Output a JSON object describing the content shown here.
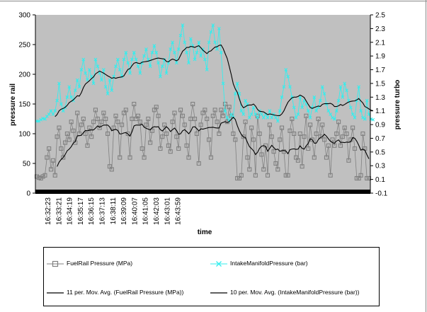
{
  "chart_data": {
    "type": "line",
    "xlabel": "time",
    "ylabel_left": "pressure rail",
    "ylabel_right": "pressure turbo",
    "y_left_range": [
      0,
      300
    ],
    "y_right_range": [
      -0.1,
      2.5
    ],
    "y_left_ticks": [
      "0",
      "50",
      "100",
      "150",
      "200",
      "250",
      "300"
    ],
    "y_right_ticks": [
      "-0.1",
      "0.1",
      "0.3",
      "0.5",
      "0.7",
      "0.9",
      "1.1",
      "1.3",
      "1.5",
      "1.7",
      "1.9",
      "2.1",
      "2.3",
      "2.5"
    ],
    "x_ticks": [
      "16:32:23",
      "16:33:21",
      "16:34:19",
      "16:35:17",
      "16:36:15",
      "16:37:13",
      "16:38:11",
      "16:39:09",
      "16:40:07",
      "16:41:05",
      "16:42:03",
      "16:43:01",
      "16:43:59"
    ],
    "grid": false,
    "background": "#c0c0c0",
    "legend_position": "bottom",
    "series": [
      {
        "name": "FuelRail Pressure (MPa)",
        "axis": "left",
        "color": "#808080",
        "marker": "square",
        "values": [
          28,
          26,
          25,
          28,
          30,
          60,
          75,
          40,
          55,
          30,
          95,
          110,
          75,
          60,
          85,
          100,
          90,
          120,
          105,
          85,
          135,
          100,
          115,
          125,
          100,
          80,
          110,
          95,
          120,
          140,
          125,
          110,
          120,
          135,
          125,
          100,
          45,
          40,
          110,
          130,
          120,
          60,
          115,
          135,
          140,
          100,
          60,
          125,
          150,
          125,
          130,
          120,
          75,
          60,
          115,
          125,
          85,
          105,
          140,
          145,
          130,
          75,
          95,
          115,
          100,
          80,
          70,
          120,
          135,
          95,
          75,
          140,
          130,
          115,
          80,
          60,
          125,
          150,
          125,
          100,
          50,
          115,
          135,
          140,
          125,
          90,
          60,
          130,
          140,
          120,
          100,
          140,
          130,
          150,
          120,
          145,
          130,
          100,
          90,
          25,
          25,
          30,
          95,
          120,
          60,
          40,
          110,
          90,
          30,
          130,
          100,
          65,
          40,
          80,
          30,
          115,
          95,
          70,
          50,
          40,
          90,
          110,
          70,
          30,
          30,
          105,
          125,
          100,
          60,
          55,
          100,
          45,
          95,
          130,
          75,
          115,
          90,
          60,
          100,
          125,
          95,
          115,
          90,
          60,
          80,
          30,
          90,
          80,
          100,
          120,
          80,
          95,
          110,
          100,
          55,
          90,
          110,
          75,
          25,
          25,
          30,
          100,
          75,
          25,
          25
        ]
      },
      {
        "name": "IntakeManifoldPressure (bar)",
        "axis": "right",
        "color": "#33eeee",
        "marker": "x",
        "values": [
          0.95,
          0.95,
          0.97,
          0.99,
          0.98,
          1.02,
          1.05,
          1.1,
          1.05,
          1.1,
          1.25,
          1.5,
          1.2,
          1.1,
          1.15,
          1.3,
          1.45,
          1.3,
          1.25,
          1.4,
          1.55,
          1.45,
          1.7,
          1.85,
          1.65,
          1.55,
          1.7,
          1.6,
          1.5,
          1.85,
          1.75,
          1.65,
          1.55,
          1.7,
          1.45,
          1.35,
          1.55,
          1.4,
          1.6,
          1.75,
          1.85,
          1.7,
          1.6,
          1.85,
          1.95,
          1.8,
          1.65,
          1.85,
          1.95,
          1.85,
          1.75,
          1.65,
          1.8,
          1.9,
          2.0,
          1.85,
          1.75,
          1.95,
          2.05,
          1.95,
          1.8,
          1.6,
          1.75,
          1.85,
          1.65,
          1.8,
          2.0,
          2.1,
          1.95,
          1.8,
          2.0,
          2.2,
          2.35,
          2.1,
          1.95,
          1.8,
          2.15,
          2.05,
          1.85,
          1.95,
          2.1,
          1.9,
          2.0,
          1.85,
          1.7,
          2.1,
          2.25,
          2.35,
          2.1,
          2.0,
          2.3,
          1.95,
          1.5,
          1.1,
          1.0,
          0.95,
          1.05,
          1.0,
          1.35,
          1.5,
          1.35,
          1.1,
          1.05,
          1.25,
          1.2,
          1.0,
          1.05,
          1.15,
          1.05,
          1.0,
          1.1,
          1.05,
          1.0,
          1.05,
          1.0,
          1.1,
          1.0,
          1.05,
          1.0,
          0.95,
          1.1,
          1.3,
          1.45,
          1.7,
          1.6,
          1.45,
          1.3,
          1.15,
          1.0,
          1.05,
          1.3,
          1.15,
          1.25,
          1.2,
          1.1,
          1.0,
          1.15,
          1.3,
          1.1,
          1.15,
          1.25,
          1.45,
          1.35,
          1.2,
          1.1,
          1.05,
          1.0,
          0.98,
          1.1,
          1.25,
          1.45,
          1.3,
          1.5,
          1.4,
          1.25,
          1.15,
          1.05,
          1.0,
          1.25,
          1.45,
          1.1,
          1.0,
          0.98,
          1.25,
          1.05,
          0.98,
          0.97
        ]
      },
      {
        "name": "11 per. Mov. Avg. (FuelRail Pressure (MPa))",
        "axis": "left",
        "color": "#000000",
        "style": "line"
      },
      {
        "name": "10 per. Mov. Avg. (IntakeManifoldPressure (bar))",
        "axis": "right",
        "color": "#000000",
        "style": "line"
      }
    ]
  }
}
